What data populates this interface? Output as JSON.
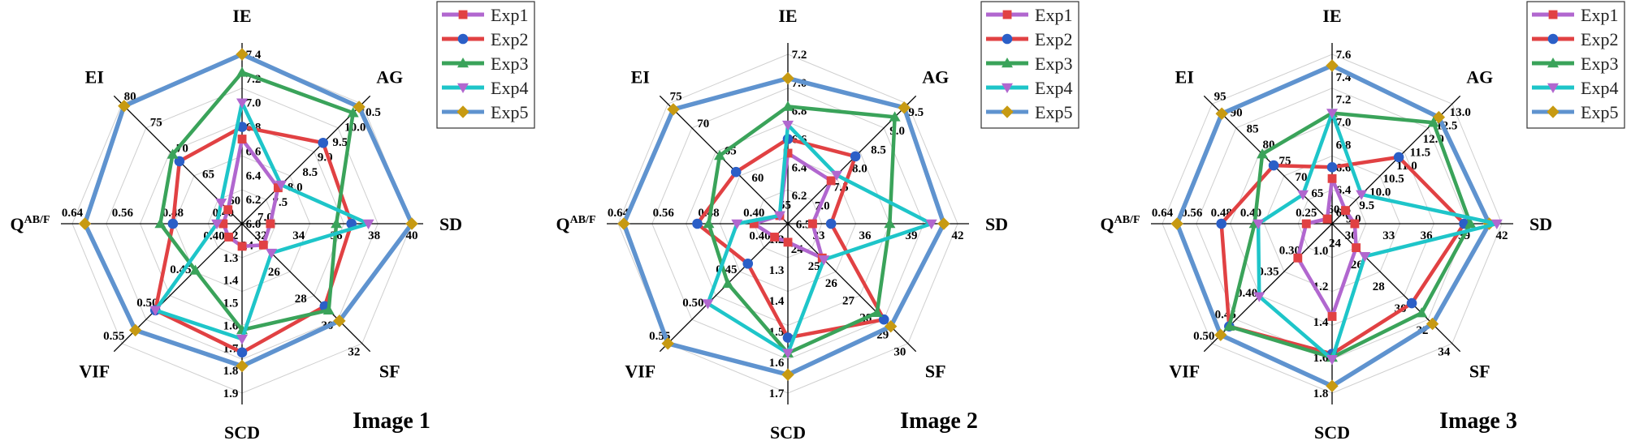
{
  "colors": {
    "Exp1": "#b167cf",
    "Exp2": "#e14143",
    "Exp3": "#3aa35a",
    "Exp4": "#1ec5c9",
    "Exp5": "#5f93cf"
  },
  "marker_colors": {
    "Exp1": "#e14143",
    "Exp2": "#2b5fc7",
    "Exp3": "#3aa35a",
    "Exp4": "#b167cf",
    "Exp5": "#c79a12"
  },
  "markers": {
    "Exp1": "square",
    "Exp2": "circle",
    "Exp3": "triangle-up",
    "Exp4": "triangle-down",
    "Exp5": "diamond"
  },
  "chart_data": [
    {
      "type": "radar",
      "title": "Image 1",
      "axes": [
        "IE",
        "AG",
        "SD",
        "SF",
        "SCD",
        "VIF",
        "Q^AB/F",
        "EI"
      ],
      "axis_ticks": [
        {
          "min": 6.0,
          "max": 7.4,
          "ticks": [
            "6.0",
            "6.2",
            "6.4",
            "6.6",
            "6.8",
            "7.0",
            "7.2",
            "7.4"
          ]
        },
        {
          "min": 6.5,
          "max": 10.5,
          "ticks": [
            "7.0",
            "7.5",
            "8.0",
            "8.5",
            "9.0",
            "9.5",
            "10.0",
            "10.5"
          ]
        },
        {
          "min": 31,
          "max": 40,
          "ticks": [
            "32",
            "34",
            "36",
            "38",
            "40"
          ]
        },
        {
          "min": 23,
          "max": 32,
          "ticks": [
            "24",
            "26",
            "28",
            "30",
            "32"
          ]
        },
        {
          "min": 1.15,
          "max": 1.9,
          "ticks": [
            "1.2",
            "1.3",
            "1.4",
            "1.5",
            "1.6",
            "1.7",
            "1.8",
            "1.9"
          ]
        },
        {
          "min": 0.37,
          "max": 0.55,
          "ticks": [
            "0.40",
            "0.45",
            "0.50",
            "0.55"
          ]
        },
        {
          "min": 0.37,
          "max": 0.64,
          "ticks": [
            "0.40",
            "0.48",
            "0.56",
            "0.64"
          ]
        },
        {
          "min": 57,
          "max": 80,
          "ticks": [
            "60",
            "65",
            "70",
            "75",
            "80"
          ]
        }
      ],
      "series": [
        {
          "name": "Exp1",
          "values": [
            6.7,
            7.7,
            32.5,
            24.6,
            1.25,
            0.39,
            0.4,
            59.7
          ]
        },
        {
          "name": "Exp2",
          "values": [
            6.8,
            9.2,
            36.8,
            29.2,
            1.72,
            0.5,
            0.48,
            69.0
          ]
        },
        {
          "name": "Exp3",
          "values": [
            7.25,
            10.2,
            36.0,
            29.5,
            1.62,
            0.44,
            0.5,
            70.3
          ]
        },
        {
          "name": "Exp4",
          "values": [
            7.0,
            7.8,
            37.7,
            25.2,
            1.66,
            0.5,
            0.41,
            61.0
          ]
        },
        {
          "name": "Exp5",
          "values": [
            7.4,
            10.4,
            40.0,
            30.3,
            1.78,
            0.53,
            0.62,
            79.6
          ]
        }
      ]
    },
    {
      "type": "radar",
      "title": "Image 2",
      "axes": [
        "IE",
        "AG",
        "SD",
        "SF",
        "SCD",
        "VIF",
        "Q^AB/F",
        "EI"
      ],
      "axis_ticks": [
        {
          "min": 6.0,
          "max": 7.2,
          "ticks": [
            "6.2",
            "6.4",
            "6.6",
            "6.8",
            "7.0",
            "7.2"
          ]
        },
        {
          "min": 6.3,
          "max": 9.5,
          "ticks": [
            "6.5",
            "7.0",
            "7.5",
            "8.0",
            "8.5",
            "9.0",
            "9.5"
          ]
        },
        {
          "min": 31,
          "max": 42,
          "ticks": [
            "33",
            "36",
            "39",
            "42"
          ]
        },
        {
          "min": 23,
          "max": 30,
          "ticks": [
            "24",
            "25",
            "26",
            "27",
            "28",
            "29",
            "30"
          ]
        },
        {
          "min": 1.15,
          "max": 1.7,
          "ticks": [
            "1.2",
            "1.3",
            "1.4",
            "1.5",
            "1.6",
            "1.7"
          ]
        },
        {
          "min": 0.37,
          "max": 0.55,
          "ticks": [
            "0.40",
            "0.45",
            "0.50",
            "0.55"
          ]
        },
        {
          "min": 0.34,
          "max": 0.64,
          "ticks": [
            "0.40",
            "0.48",
            "0.56",
            "0.64"
          ]
        },
        {
          "min": 53,
          "max": 75,
          "ticks": [
            "55",
            "60",
            "65",
            "70",
            "75"
          ]
        }
      ],
      "series": [
        {
          "name": "Exp1",
          "values": [
            6.5,
            7.45,
            32.6,
            25.0,
            1.21,
            0.39,
            0.4,
            54.5
          ]
        },
        {
          "name": "Exp2",
          "values": [
            6.6,
            8.1,
            33.8,
            28.6,
            1.52,
            0.43,
            0.5,
            62.5
          ]
        },
        {
          "name": "Exp3",
          "values": [
            6.83,
            9.15,
            37.6,
            28.2,
            1.57,
            0.46,
            0.48,
            65.5
          ]
        },
        {
          "name": "Exp4",
          "values": [
            6.7,
            7.6,
            40.3,
            25.1,
            1.57,
            0.49,
            0.43,
            54.5
          ]
        },
        {
          "name": "Exp5",
          "values": [
            7.03,
            9.4,
            41.1,
            29.0,
            1.64,
            0.55,
            0.63,
            74.0
          ]
        }
      ]
    },
    {
      "type": "radar",
      "title": "Image 3",
      "axes": [
        "IE",
        "AG",
        "SD",
        "SF",
        "SCD",
        "VIF",
        "Q^AB/F",
        "EI"
      ],
      "axis_ticks": [
        {
          "min": 6.1,
          "max": 7.6,
          "ticks": [
            "6.2",
            "6.4",
            "6.6",
            "6.8",
            "7.0",
            "7.2",
            "7.4",
            "7.6"
          ]
        },
        {
          "min": 8.5,
          "max": 13.0,
          "ticks": [
            "9.0",
            "9.5",
            "10.0",
            "10.5",
            "11.0",
            "11.5",
            "12.0",
            "12.5",
            "13.0"
          ]
        },
        {
          "min": 28.5,
          "max": 42,
          "ticks": [
            "30",
            "33",
            "36",
            "39",
            "42"
          ]
        },
        {
          "min": 23,
          "max": 34,
          "ticks": [
            "24",
            "26",
            "28",
            "30",
            "32",
            "34"
          ]
        },
        {
          "min": 0.85,
          "max": 1.8,
          "ticks": [
            "1.0",
            "1.2",
            "1.4",
            "1.6",
            "1.8"
          ]
        },
        {
          "min": 0.22,
          "max": 0.5,
          "ticks": [
            "0.30",
            "0.35",
            "0.40",
            "0.45",
            "0.50"
          ]
        },
        {
          "min": 0.18,
          "max": 0.64,
          "ticks": [
            "0.25",
            "0.40",
            "0.48",
            "0.56",
            "0.64"
          ]
        },
        {
          "min": 58,
          "max": 95,
          "ticks": [
            "60",
            "65",
            "70",
            "75",
            "80",
            "85",
            "90",
            "95"
          ]
        }
      ],
      "series": [
        {
          "name": "Exp1",
          "values": [
            6.5,
            9.0,
            30.3,
            25.2,
            1.37,
            0.3,
            0.25,
            59.5
          ]
        },
        {
          "name": "Exp2",
          "values": [
            6.6,
            11.0,
            39.0,
            30.3,
            1.58,
            0.46,
            0.48,
            76.0
          ]
        },
        {
          "name": "Exp3",
          "values": [
            7.08,
            12.3,
            39.5,
            31.2,
            1.6,
            0.46,
            0.39,
            79.5
          ]
        },
        {
          "name": "Exp4",
          "values": [
            7.08,
            9.6,
            41.6,
            26.0,
            1.61,
            0.39,
            0.38,
            67.0
          ]
        },
        {
          "name": "Exp5",
          "values": [
            7.5,
            12.5,
            41.0,
            32.2,
            1.76,
            0.48,
            0.6,
            92.0
          ]
        }
      ]
    }
  ]
}
